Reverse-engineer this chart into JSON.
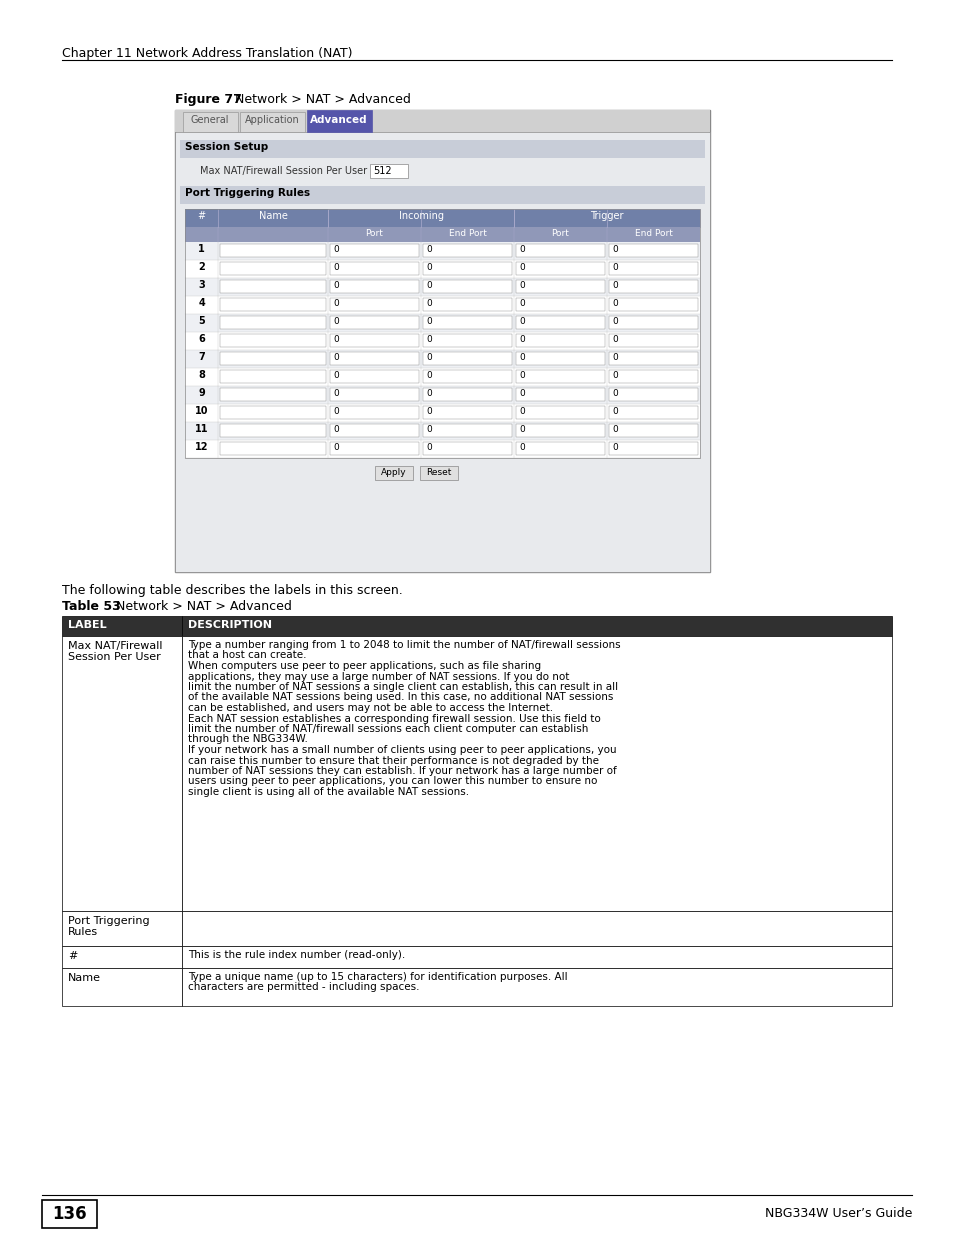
{
  "page_title": "Chapter 11 Network Address Translation (NAT)",
  "figure_label": "Figure 77",
  "figure_title": "Network > NAT > Advanced",
  "tab_labels": [
    "General",
    "Application",
    "Advanced"
  ],
  "active_tab": "Advanced",
  "section1_title": "Session Setup",
  "session_label": "Max NAT/Firewall Session Per User",
  "session_value": "512",
  "section2_title": "Port Triggering Rules",
  "table_col_headers": [
    "#",
    "Name",
    "Incoming",
    "Trigger"
  ],
  "table_sub_headers": [
    "Port",
    "End Port",
    "Port",
    "End Port"
  ],
  "num_rows": 12,
  "table_caption": "Table 53",
  "table_title": "Network > NAT > Advanced",
  "desc_intro": "The following table describes the labels in this screen.",
  "desc_table_headers": [
    "LABEL",
    "DESCRIPTION"
  ],
  "desc_rows": [
    {
      "label": "Max NAT/Firewall\nSession Per User",
      "desc": "Type a number ranging from 1 to 2048 to limit the number of NAT/firewall sessions\nthat a host can create.\nWhen computers use peer to peer applications, such as file sharing\napplications, they may use a large number of NAT sessions. If you do not\nlimit the number of NAT sessions a single client can establish, this can result in all\nof the available NAT sessions being used. In this case, no additional NAT sessions\ncan be established, and users may not be able to access the Internet.\nEach NAT session establishes a corresponding firewall session. Use this field to\nlimit the number of NAT/firewall sessions each client computer can establish\nthrough the NBG334W.\nIf your network has a small number of clients using peer to peer applications, you\ncan raise this number to ensure that their performance is not degraded by the\nnumber of NAT sessions they can establish. If your network has a large number of\nusers using peer to peer applications, you can lower this number to ensure no\nsingle client is using all of the available NAT sessions."
    },
    {
      "label": "Port Triggering\nRules",
      "desc": ""
    },
    {
      "label": "#",
      "desc": "This is the rule index number (read-only)."
    },
    {
      "label": "Name",
      "desc": "Type a unique name (up to 15 characters) for identification purposes. All\ncharacters are permitted - including spaces."
    }
  ],
  "footer_page": "136",
  "footer_title": "NBG334W User’s Guide",
  "bg_color": "#ffffff",
  "tab_bg": "#d8d8d8",
  "active_tab_color": "#5555aa",
  "section_header_bg": "#c8d0dc",
  "table_header_bg": "#7080a8",
  "table_header_text": "#ffffff",
  "table_subheader_bg": "#9098b8",
  "table_row_odd_bg": "#eef0f4",
  "table_row_even_bg": "#ffffff",
  "desc_header_bg": "#404040",
  "desc_header_text": "#ffffff",
  "border_color": "#808080",
  "input_bg": "#ffffff"
}
